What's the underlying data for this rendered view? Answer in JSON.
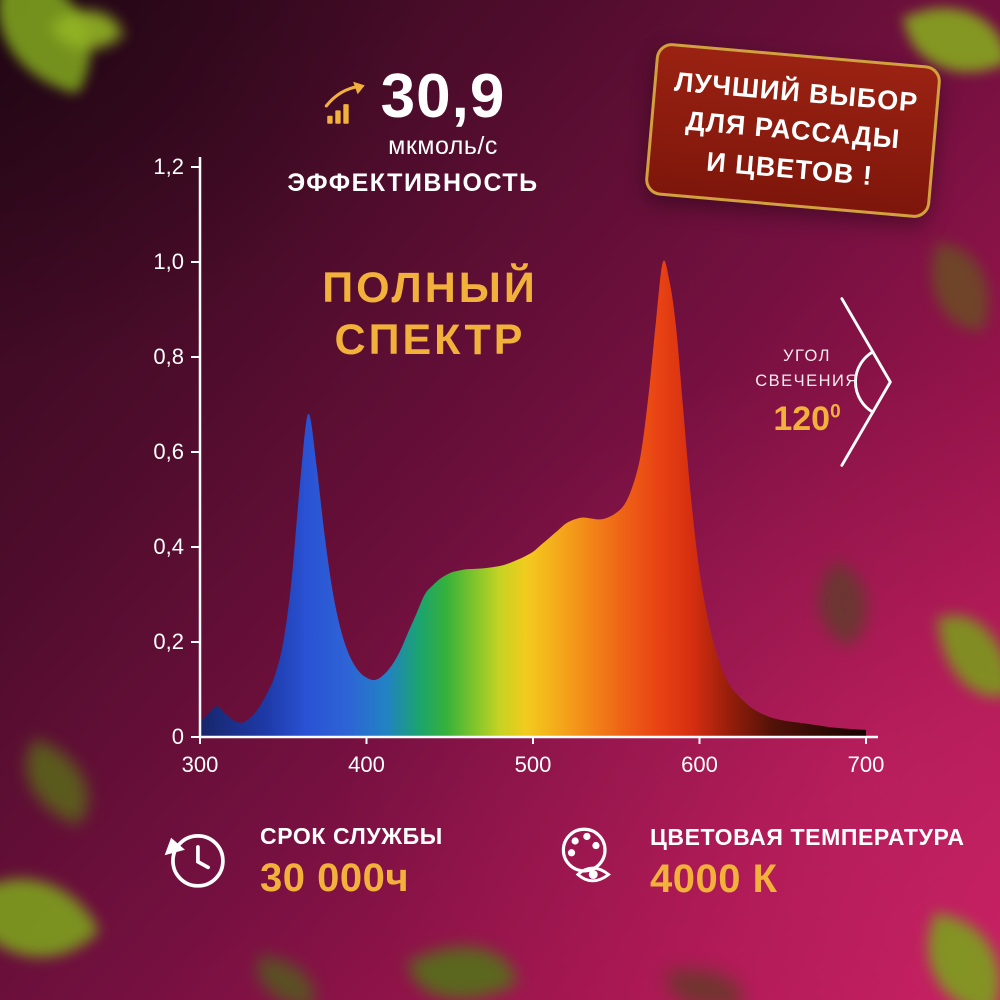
{
  "poster": {
    "efficiency": {
      "value": "30,9",
      "unit": "мкмоль/с",
      "label": "ЭФФЕКТИВНОСТЬ"
    },
    "badge": {
      "lines": [
        "ЛУЧШИЙ ВЫБОР",
        "ДЛЯ РАССАДЫ",
        "И ЦВЕТОВ !"
      ]
    },
    "spectrum_title_line1": "ПОЛНЫЙ",
    "spectrum_title_line2": "СПЕКТР",
    "beam_angle": {
      "label_line1": "УГОЛ",
      "label_line2": "СВЕЧЕНИЯ",
      "value": "120",
      "value_superscript": "0"
    },
    "lifespan": {
      "label": "СРОК СЛУЖБЫ",
      "value": "30 000ч"
    },
    "color_temperature": {
      "label": "ЦВЕТОВАЯ ТЕМПЕРАТУРА",
      "value": "4000 К"
    }
  },
  "colors": {
    "accent_gold": "#f2b13a",
    "badge_background": "#8e1c0f",
    "badge_border": "#d2a03c",
    "axis": "#ffffff",
    "background_dark": "#2e081c",
    "background_bright": "#c41e60"
  },
  "chart_data": {
    "type": "area",
    "title": "ПОЛНЫЙ СПЕКТР",
    "xlabel": "",
    "ylabel": "",
    "xlim": [
      300,
      700
    ],
    "ylim": [
      0,
      1.2
    ],
    "grid": false,
    "legend": false,
    "x_ticks": [
      300,
      400,
      500,
      600,
      700
    ],
    "x_tick_labels": [
      "300",
      "400",
      "500",
      "600",
      "700"
    ],
    "y_ticks": [
      0,
      0.2,
      0.4,
      0.6,
      0.8,
      1.0,
      1.2
    ],
    "y_tick_labels": [
      "0",
      "0,2",
      "0,4",
      "0,6",
      "0,8",
      "1,0",
      "1,2"
    ],
    "series": [
      {
        "name": "spectrum",
        "points": [
          [
            300,
            0.03
          ],
          [
            305,
            0.05
          ],
          [
            310,
            0.065
          ],
          [
            315,
            0.05
          ],
          [
            320,
            0.035
          ],
          [
            325,
            0.03
          ],
          [
            330,
            0.04
          ],
          [
            335,
            0.06
          ],
          [
            340,
            0.09
          ],
          [
            345,
            0.13
          ],
          [
            350,
            0.2
          ],
          [
            355,
            0.33
          ],
          [
            360,
            0.53
          ],
          [
            365,
            0.68
          ],
          [
            370,
            0.57
          ],
          [
            375,
            0.42
          ],
          [
            380,
            0.3
          ],
          [
            385,
            0.22
          ],
          [
            390,
            0.17
          ],
          [
            395,
            0.14
          ],
          [
            400,
            0.125
          ],
          [
            405,
            0.12
          ],
          [
            410,
            0.13
          ],
          [
            415,
            0.15
          ],
          [
            420,
            0.18
          ],
          [
            425,
            0.22
          ],
          [
            430,
            0.26
          ],
          [
            435,
            0.3
          ],
          [
            440,
            0.32
          ],
          [
            445,
            0.335
          ],
          [
            450,
            0.345
          ],
          [
            455,
            0.35
          ],
          [
            460,
            0.353
          ],
          [
            465,
            0.354
          ],
          [
            470,
            0.355
          ],
          [
            475,
            0.357
          ],
          [
            480,
            0.36
          ],
          [
            485,
            0.365
          ],
          [
            490,
            0.372
          ],
          [
            495,
            0.38
          ],
          [
            500,
            0.39
          ],
          [
            505,
            0.405
          ],
          [
            510,
            0.42
          ],
          [
            515,
            0.435
          ],
          [
            520,
            0.45
          ],
          [
            525,
            0.458
          ],
          [
            530,
            0.462
          ],
          [
            535,
            0.46
          ],
          [
            540,
            0.458
          ],
          [
            545,
            0.462
          ],
          [
            550,
            0.472
          ],
          [
            555,
            0.49
          ],
          [
            560,
            0.53
          ],
          [
            565,
            0.6
          ],
          [
            570,
            0.74
          ],
          [
            574,
            0.88
          ],
          [
            578,
            1.0
          ],
          [
            582,
            0.96
          ],
          [
            586,
            0.86
          ],
          [
            590,
            0.7
          ],
          [
            595,
            0.5
          ],
          [
            600,
            0.35
          ],
          [
            605,
            0.25
          ],
          [
            610,
            0.18
          ],
          [
            615,
            0.13
          ],
          [
            620,
            0.1
          ],
          [
            630,
            0.065
          ],
          [
            640,
            0.045
          ],
          [
            650,
            0.035
          ],
          [
            660,
            0.03
          ],
          [
            670,
            0.025
          ],
          [
            680,
            0.02
          ],
          [
            690,
            0.017
          ],
          [
            700,
            0.015
          ]
        ]
      }
    ],
    "gradient_stops": [
      {
        "offset": 0.0,
        "color": "#17266b"
      },
      {
        "offset": 0.1,
        "color": "#1e3aa8"
      },
      {
        "offset": 0.16,
        "color": "#2a52d4"
      },
      {
        "offset": 0.22,
        "color": "#2e63d6"
      },
      {
        "offset": 0.28,
        "color": "#2282c4"
      },
      {
        "offset": 0.33,
        "color": "#1ba46e"
      },
      {
        "offset": 0.37,
        "color": "#36b13a"
      },
      {
        "offset": 0.41,
        "color": "#7cc42c"
      },
      {
        "offset": 0.45,
        "color": "#c6d323"
      },
      {
        "offset": 0.49,
        "color": "#f2cb1e"
      },
      {
        "offset": 0.54,
        "color": "#f4a81b"
      },
      {
        "offset": 0.59,
        "color": "#f28318"
      },
      {
        "offset": 0.64,
        "color": "#ee5f16"
      },
      {
        "offset": 0.69,
        "color": "#e84214"
      },
      {
        "offset": 0.74,
        "color": "#d52e10"
      },
      {
        "offset": 0.79,
        "color": "#9c1f0b"
      },
      {
        "offset": 0.86,
        "color": "#521208"
      },
      {
        "offset": 1.0,
        "color": "#160302"
      }
    ]
  }
}
